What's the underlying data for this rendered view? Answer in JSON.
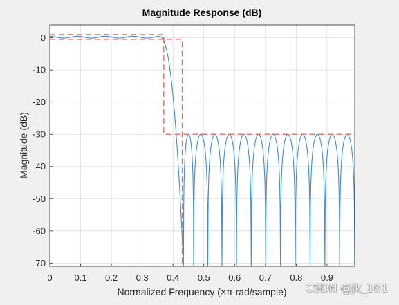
{
  "chart_data": {
    "type": "line",
    "title": "Magnitude Response (dB)",
    "xlabel": "Normalized Frequency (×π rad/sample)",
    "ylabel": "Magnitude (dB)",
    "xlim": [
      0,
      0.99
    ],
    "ylim": [
      -71,
      4
    ],
    "xticks": [
      0,
      0.1,
      0.2,
      0.3,
      0.4,
      0.5,
      0.6,
      0.7,
      0.8,
      0.9
    ],
    "xtick_labels": [
      "0",
      "0.1",
      "0.2",
      "0.3",
      "0.4",
      "0.5",
      "0.6",
      "0.7",
      "0.8",
      "0.9"
    ],
    "yticks": [
      0,
      -10,
      -20,
      -30,
      -40,
      -50,
      -60,
      -70
    ],
    "ytick_labels": [
      "0",
      "-10",
      "-20",
      "-30",
      "-40",
      "-50",
      "-60",
      "-70"
    ],
    "grid": true,
    "series": [
      {
        "color": "#3c8fd0",
        "style": "solid",
        "description_values": {
          "passband_edge": 0.37,
          "stopband_edge": 0.43,
          "passband_ripple_db": 0.6,
          "stopband_peak_db": -30,
          "stopband_null_freqs": [
            0.434,
            0.467,
            0.513,
            0.559,
            0.606,
            0.654,
            0.701,
            0.749,
            0.797,
            0.845,
            0.893,
            0.941,
            0.99
          ],
          "stopband_peak_freqs": [
            0.446,
            0.49,
            0.536,
            0.583,
            0.63,
            0.678,
            0.725,
            0.773,
            0.821,
            0.869,
            0.917,
            0.965
          ]
        }
      },
      {
        "color": "#e07060",
        "style": "dashed",
        "points": [
          [
            0,
            1
          ],
          [
            0.37,
            1
          ],
          [
            0.37,
            -30
          ],
          [
            0.99,
            -30
          ]
        ]
      },
      {
        "color": "#e07060",
        "style": "dashed",
        "points": [
          [
            0,
            -0.5
          ],
          [
            0.43,
            -0.5
          ],
          [
            0.43,
            -71
          ]
        ]
      }
    ]
  },
  "watermark": "CSDN @jk_101"
}
